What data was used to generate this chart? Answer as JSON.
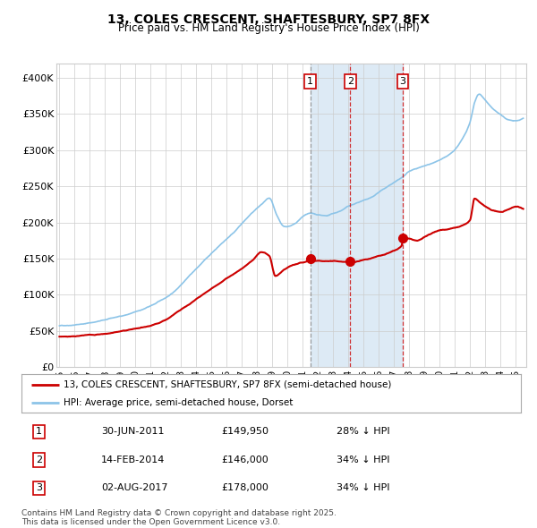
{
  "title": "13, COLES CRESCENT, SHAFTESBURY, SP7 8FX",
  "subtitle": "Price paid vs. HM Land Registry's House Price Index (HPI)",
  "legend_line1": "13, COLES CRESCENT, SHAFTESBURY, SP7 8FX (semi-detached house)",
  "legend_line2": "HPI: Average price, semi-detached house, Dorset",
  "footer": "Contains HM Land Registry data © Crown copyright and database right 2025.\nThis data is licensed under the Open Government Licence v3.0.",
  "hpi_color": "#8CC4E8",
  "price_color": "#CC0000",
  "marker_color": "#CC0000",
  "vline1_color": "#888888",
  "vline23_color": "#CC0000",
  "bg_shade_color": "#DDEAF5",
  "sale_dates_num": [
    2011.496,
    2014.12,
    2017.586
  ],
  "sale_prices": [
    149950,
    146000,
    178000
  ],
  "sale_labels": [
    "1",
    "2",
    "3"
  ],
  "sale_label_rows": [
    [
      "1",
      "30-JUN-2011",
      "£149,950",
      "28% ↓ HPI"
    ],
    [
      "2",
      "14-FEB-2014",
      "£146,000",
      "34% ↓ HPI"
    ],
    [
      "3",
      "02-AUG-2017",
      "£178,000",
      "34% ↓ HPI"
    ]
  ],
  "ylim": [
    0,
    420000
  ],
  "xlim_start": 1994.8,
  "xlim_end": 2025.7,
  "ytick_vals": [
    0,
    50000,
    100000,
    150000,
    200000,
    250000,
    300000,
    350000,
    400000
  ],
  "ytick_labels": [
    "£0",
    "£50K",
    "£100K",
    "£150K",
    "£200K",
    "£250K",
    "£300K",
    "£350K",
    "£400K"
  ],
  "xtick_years": [
    1995,
    1996,
    1997,
    1998,
    1999,
    2000,
    2001,
    2002,
    2003,
    2004,
    2005,
    2006,
    2007,
    2008,
    2009,
    2010,
    2011,
    2012,
    2013,
    2014,
    2015,
    2016,
    2017,
    2018,
    2019,
    2020,
    2021,
    2022,
    2023,
    2024,
    2025
  ]
}
